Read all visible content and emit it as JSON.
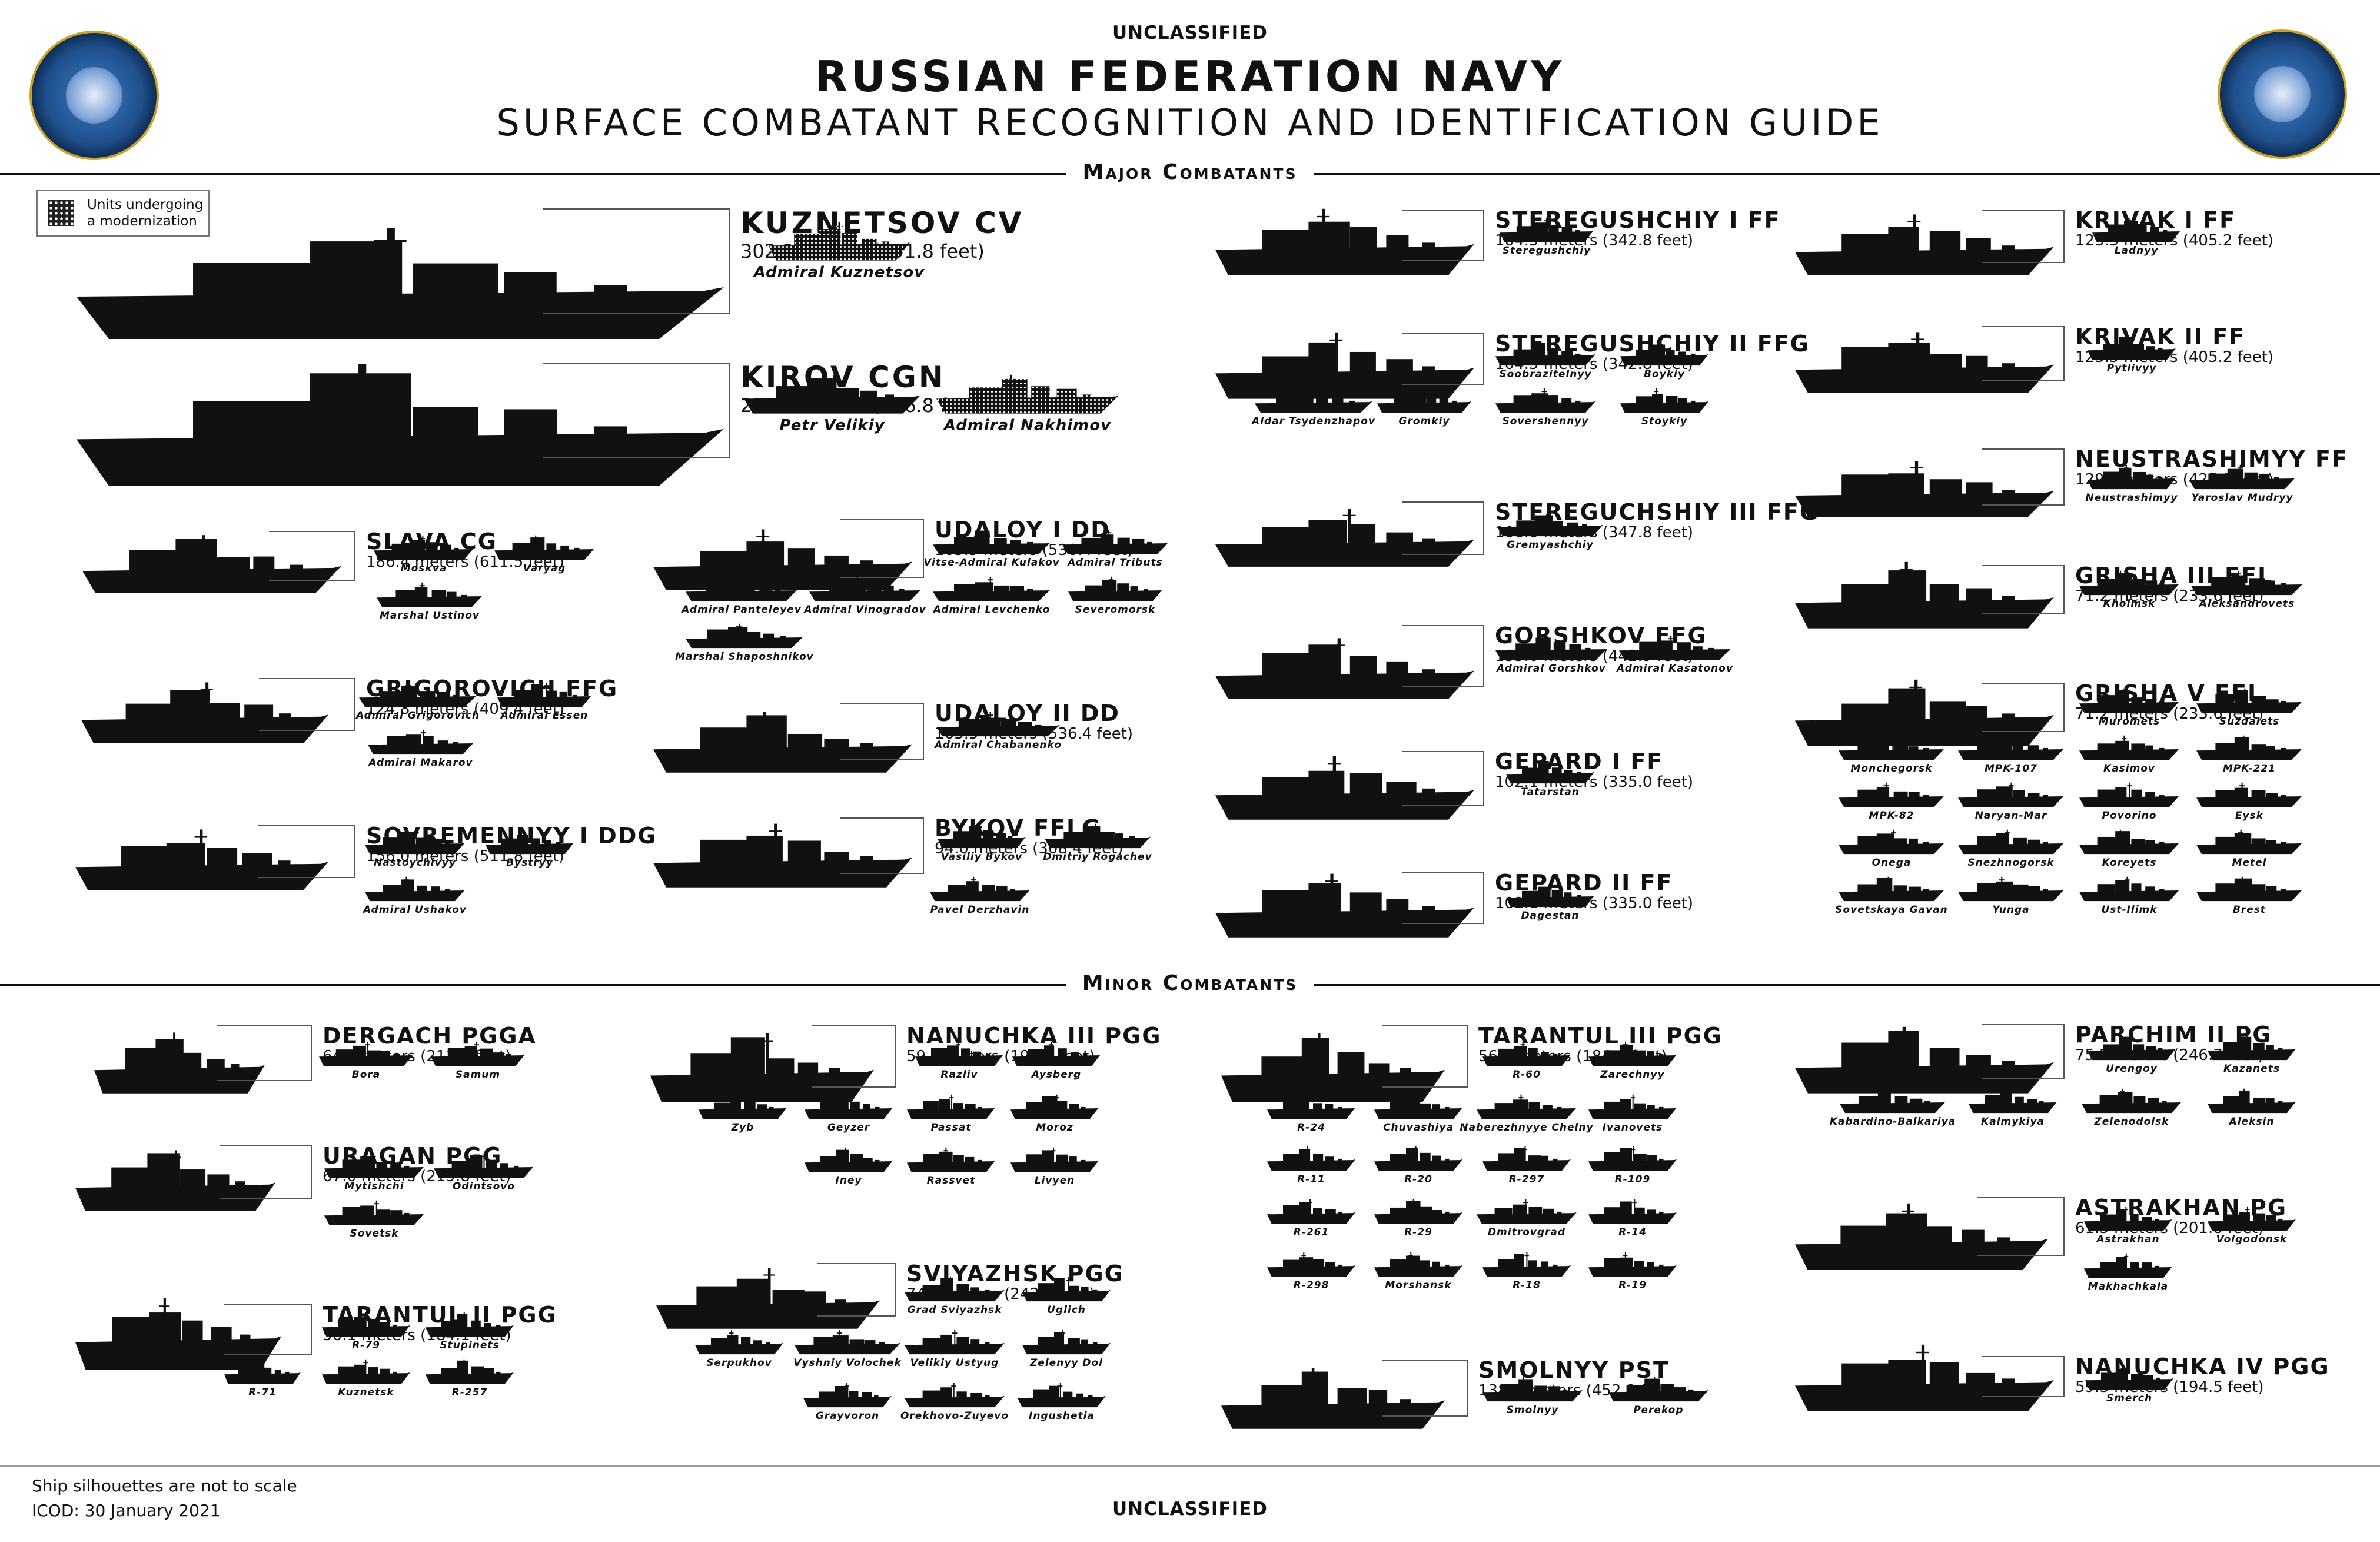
{
  "header": {
    "classification_top": "UNCLASSIFIED",
    "title": "RUSSIAN FEDERATION NAVY",
    "subtitle": "SURFACE COMBATANT RECOGNITION AND IDENTIFICATION GUIDE"
  },
  "seals": [
    "office-of-naval-intelligence-seal",
    "naval-technical-seal"
  ],
  "legend": {
    "text_line1": "Units undergoing",
    "text_line2": "a modernization"
  },
  "sections": {
    "major": "Major Combatants",
    "minor": "Minor Combatants"
  },
  "colors": {
    "silhouette": "#111111",
    "text": "#111111"
  },
  "footer": {
    "scale_note": "Ship silhouettes are not to scale",
    "icod": "ICOD: 30 January 2021",
    "classification_bottom": "UNCLASSIFIED"
  },
  "classes": [
    {
      "name": "KUZNETSOV CV",
      "length": "302.3 meters (991.8 feet)",
      "units": [
        "Admiral Kuznetsov"
      ]
    },
    {
      "name": "KIROV CGN",
      "length": "252.0 meters (826.8 feet)",
      "units": [
        "Petr Velikiy",
        "Admiral Nakhimov"
      ]
    },
    {
      "name": "SLAVA CG",
      "length": "186.4 meters (611.5 feet)",
      "units": [
        "Moskva",
        "Varyag",
        "Marshal Ustinov"
      ]
    },
    {
      "name": "GRIGOROVICH FFG",
      "length": "124.8 meters (409.4 feet)",
      "units": [
        "Admiral Grigorovich",
        "Admiral Essen",
        "Admiral Makarov"
      ]
    },
    {
      "name": "SOVREMENNYY I DDG",
      "length": "156.0 meters (511.8 feet)",
      "units": [
        "Nastoychivyy",
        "Bystryy",
        "Admiral Ushakov"
      ]
    },
    {
      "name": "UDALOY I DD",
      "length": "163.5 meters (536.4 feet)",
      "units": [
        "Vitse-Admiral Kulakov",
        "Admiral Tributs",
        "Admiral Panteleyev",
        "Admiral Vinogradov",
        "Admiral Levchenko",
        "Severomorsk",
        "Marshal Shaposhnikov"
      ]
    },
    {
      "name": "UDALOY II DD",
      "length": "163.5 meters (536.4 feet)",
      "units": [
        "Admiral Chabanenko"
      ]
    },
    {
      "name": "BYKOV FFLG",
      "length": "94.0 meters (308.4 feet)",
      "units": [
        "Vasiliy Bykov",
        "Dmitriy Rogachev",
        "Pavel Derzhavin"
      ]
    },
    {
      "name": "STEREGUSHCHIY I FF",
      "length": "104.5 meters (342.8 feet)",
      "units": [
        "Steregushchiy"
      ]
    },
    {
      "name": "STEREGUSHCHIY II FFG",
      "length": "104.5 meters (342.8 feet)",
      "units": [
        "Soobrazitelnyy",
        "Boykiy",
        "Aldar Tsydenzhapov",
        "Gromkiy",
        "Sovershennyy",
        "Stoykiy"
      ]
    },
    {
      "name": "STEREGUCHSHIY III FFG",
      "length": "106.0 meters (347.8 feet)",
      "units": [
        "Gremyashchiy"
      ]
    },
    {
      "name": "GORSHKOV FFG",
      "length": "135.0 meters (442.9 feet)",
      "units": [
        "Admiral Gorshkov",
        "Admiral Kasatonov"
      ]
    },
    {
      "name": "GEPARD I FF",
      "length": "102.1 meters (335.0 feet)",
      "units": [
        "Tatarstan"
      ]
    },
    {
      "name": "GEPARD II FF",
      "length": "102.1 meters (335.0 feet)",
      "units": [
        "Dagestan"
      ]
    },
    {
      "name": "KRIVAK I FF",
      "length": "123.5 meters (405.2 feet)",
      "units": [
        "Ladnyy"
      ]
    },
    {
      "name": "KRIVAK II FF",
      "length": "123.5 meters (405.2 feet)",
      "units": [
        "Pytlivyy"
      ]
    },
    {
      "name": "NEUSTRASHIMYY FF",
      "length": "129.6 meters (425.2 feet)",
      "units": [
        "Neustrashimyy",
        "Yaroslav Mudryy"
      ]
    },
    {
      "name": "GRISHA III FFL",
      "length": "71.2 meters (233.6 feet)",
      "units": [
        "Kholmsk",
        "Aleksandrovets"
      ]
    },
    {
      "name": "GRISHA V FFL",
      "length": "71.2 meters (233.6 feet)",
      "units": [
        "Muromets",
        "Suzdalets",
        "Monchegorsk",
        "MPK-107",
        "Kasimov",
        "MPK-221",
        "MPK-82",
        "Naryan-Mar",
        "Povorino",
        "Eysk",
        "Onega",
        "Snezhnogorsk",
        "Koreyets",
        "Metel",
        "Sovetskaya Gavan",
        "Yunga",
        "Ust-Ilimk",
        "Brest"
      ]
    },
    {
      "name": "DERGACH PGGA",
      "length": "64.5 meters (211.6 feet)",
      "units": [
        "Bora",
        "Samum"
      ]
    },
    {
      "name": "URAGAN PGG",
      "length": "67.0 meters (219.8 feet)",
      "units": [
        "Mytishchi",
        "Odintsovo",
        "Sovetsk"
      ]
    },
    {
      "name": "TARANTUL II PGG",
      "length": "56.1 meters (184.1 feet)",
      "units": [
        "R-79",
        "Stupinets",
        "R-71",
        "Kuznetsk",
        "R-257"
      ]
    },
    {
      "name": "NANUCHKA III PGG",
      "length": "59.3 meters (194.6 feet)",
      "units": [
        "Razliv",
        "Aysberg",
        "Zyb",
        "Geyzer",
        "Passat",
        "Moroz",
        "Iney",
        "Rassvet",
        "Livyen"
      ]
    },
    {
      "name": "SVIYAZHSK PGG",
      "length": "74.1 meters (243.1 feet)",
      "units": [
        "Grad Sviyazhsk",
        "Uglich",
        "Serpukhov",
        "Vyshniy Volochek",
        "Velikiy Ustyug",
        "Zelenyy Dol",
        "Grayvoron",
        "Orekhovo-Zuyevo",
        "Ingushetia"
      ]
    },
    {
      "name": "TARANTUL III PGG",
      "length": "56.1 meters (184.1 feet)",
      "units": [
        "R-60",
        "Zarechnyy",
        "R-24",
        "Chuvashiya",
        "Naberezhnyye Chelny",
        "Ivanovets",
        "R-11",
        "R-20",
        "R-297",
        "R-109",
        "R-261",
        "R-29",
        "Dmitrovgrad",
        "R-14",
        "R-298",
        "Morshansk",
        "R-18",
        "R-19"
      ]
    },
    {
      "name": "SMOLNYY PST",
      "length": "138.0 meters (452.8 feet)",
      "units": [
        "Smolnyy",
        "Perekop"
      ]
    },
    {
      "name": "PARCHIM II PG",
      "length": "75.2 meters (246.7 feet)",
      "units": [
        "Urengoy",
        "Kazanets",
        "Kabardino-Balkariya",
        "Kalmykiya",
        "Zelenodolsk",
        "Aleksin"
      ]
    },
    {
      "name": "ASTRAKHAN PG",
      "length": "61.5 meters (201.8 feet)",
      "units": [
        "Astrakhan",
        "Volgodonsk",
        "Makhachkala"
      ]
    },
    {
      "name": "NANUCHKA IV PGG",
      "length": "59.3 meters (194.5 feet)",
      "units": [
        "Smerch"
      ]
    }
  ]
}
